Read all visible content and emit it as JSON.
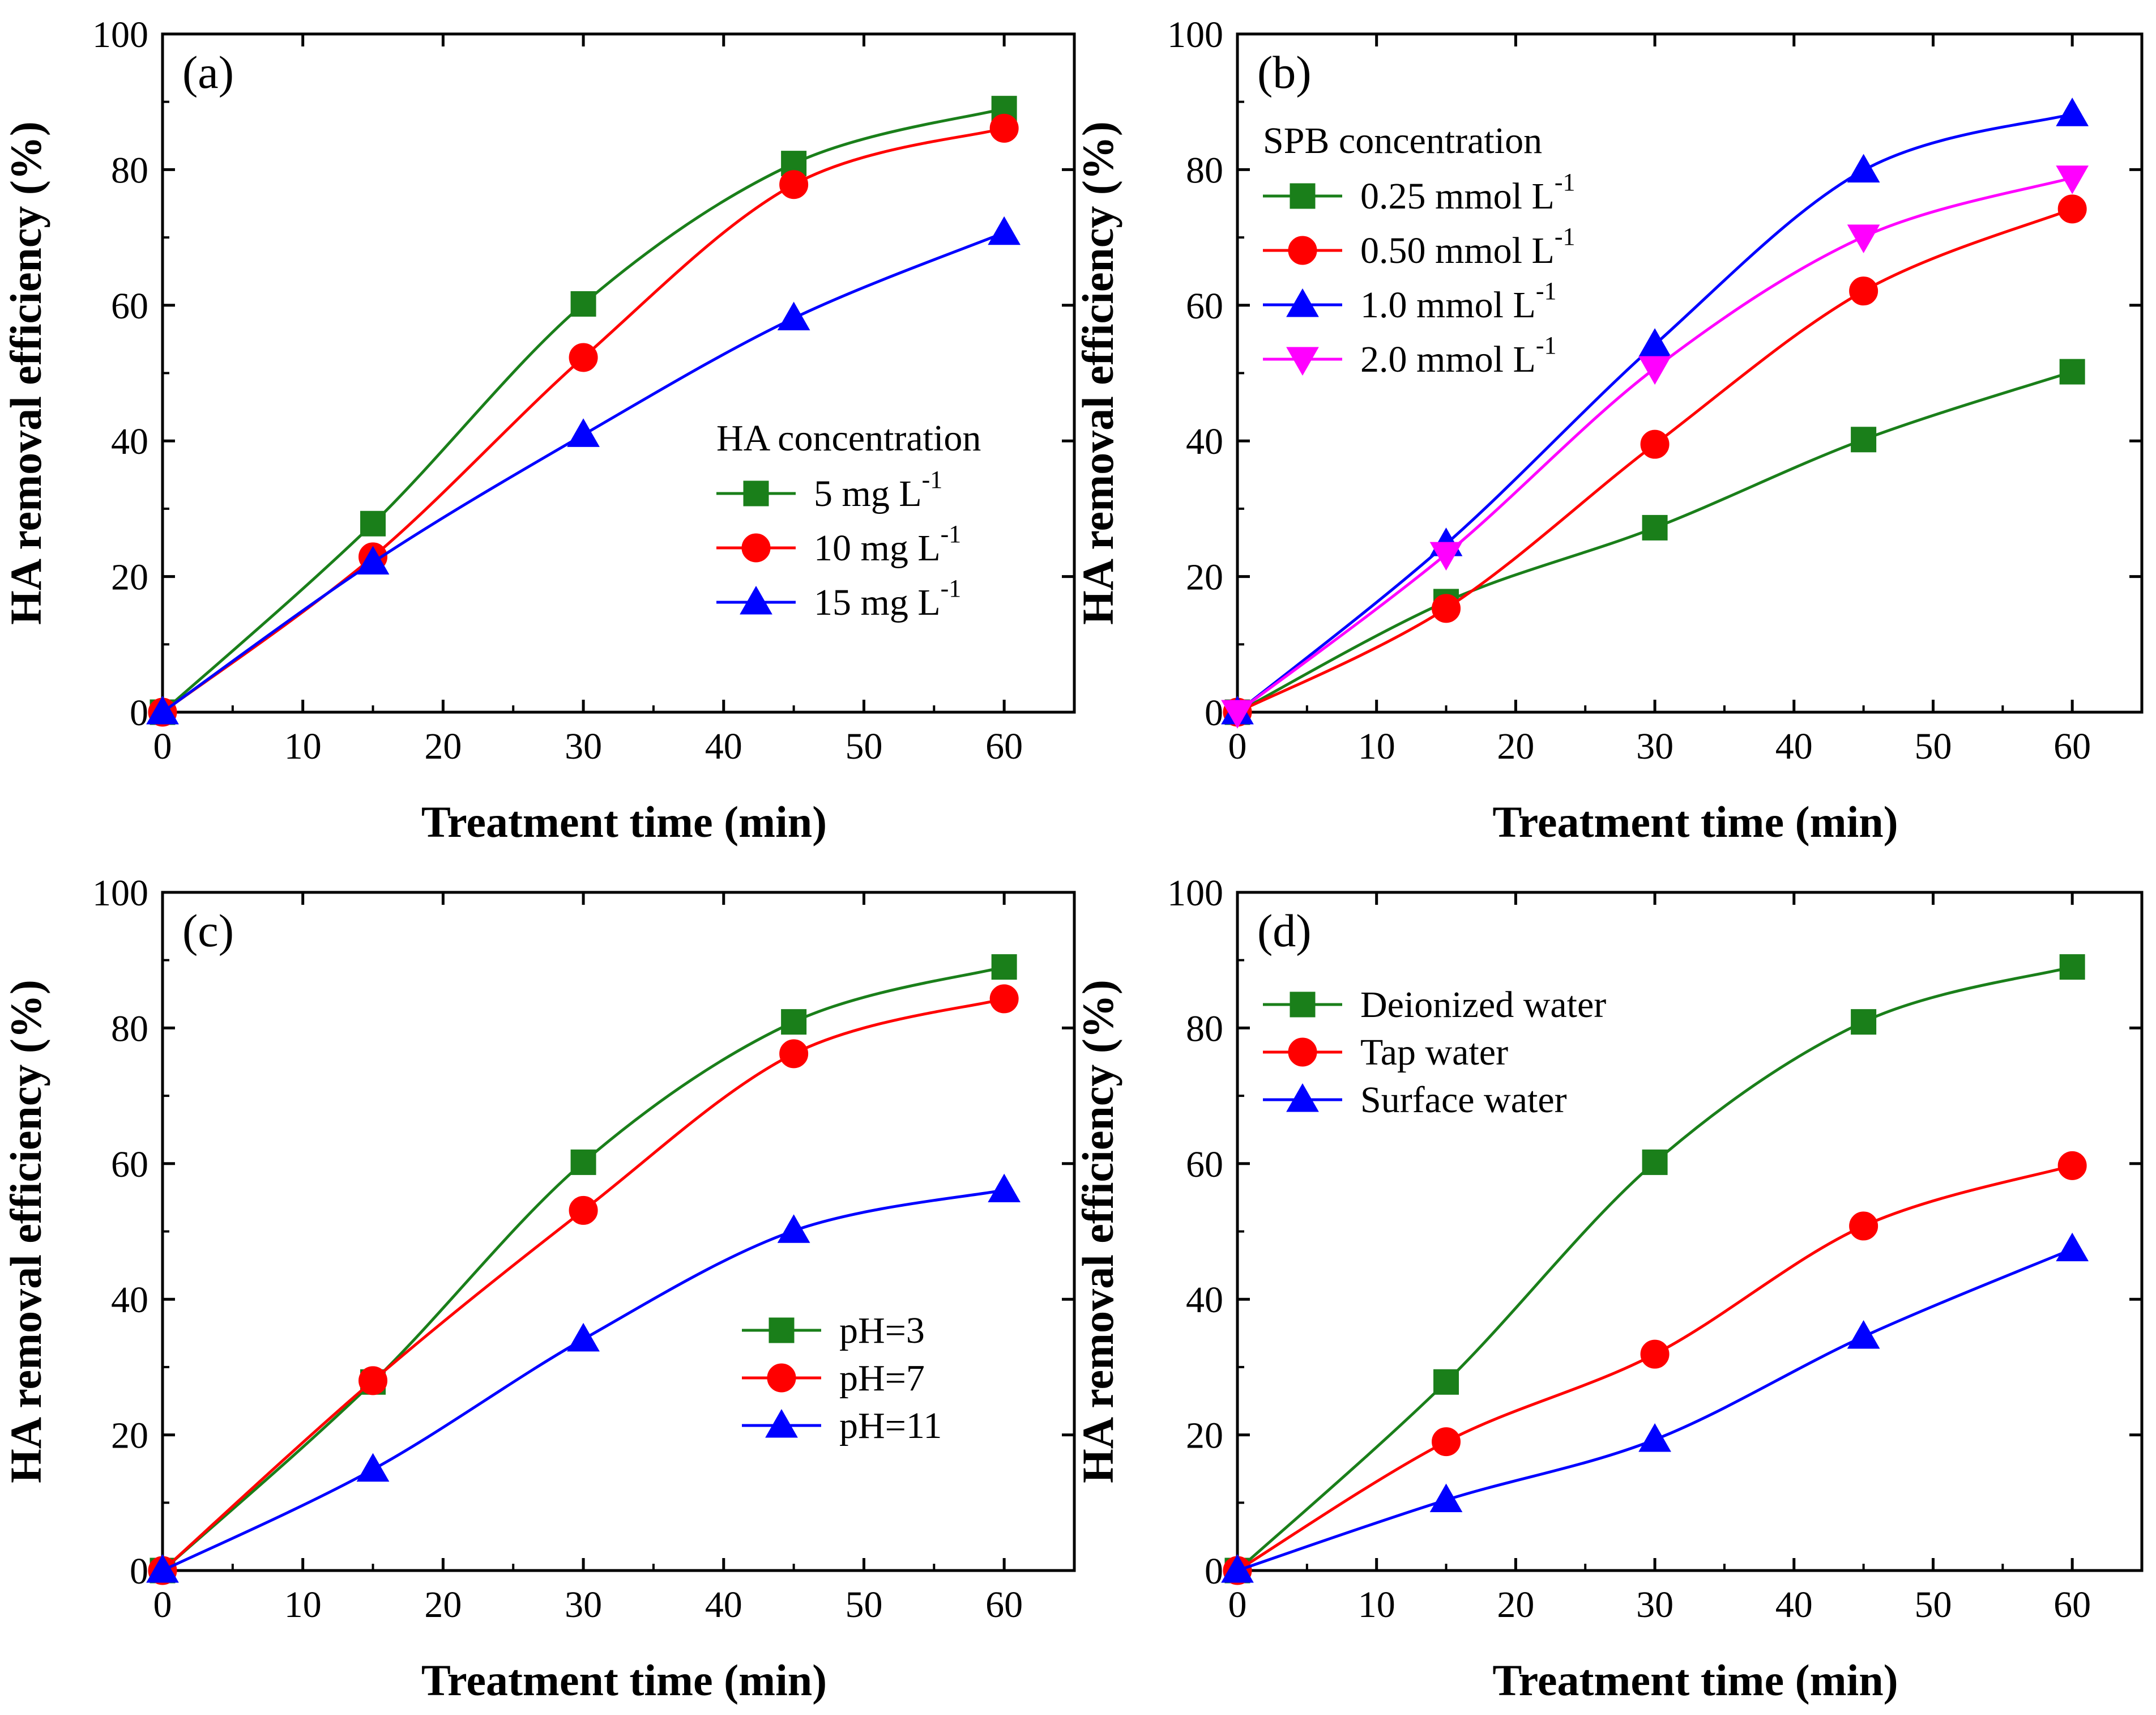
{
  "chart_data": [
    {
      "type": "line",
      "panel_label": "(a)",
      "xlabel": "Treatment time (min)",
      "ylabel": "HA removal efficiency (%)",
      "xlim": [
        0,
        65
      ],
      "ylim": [
        0,
        100
      ],
      "xticks": [
        "0",
        "10",
        "20",
        "30",
        "40",
        "50",
        "60"
      ],
      "yticks": [
        "0",
        "20",
        "40",
        "60",
        "80",
        "100"
      ],
      "x": [
        0,
        15,
        30,
        45,
        60
      ],
      "legend_title": "HA concentration",
      "legend_position": "center-right",
      "series": [
        {
          "label": "5 mg L",
          "sup": "-1",
          "marker": "square",
          "color": "#1a7f1a",
          "values": [
            0,
            27.8,
            60.2,
            80.9,
            89.0
          ]
        },
        {
          "label": "10 mg L",
          "sup": "-1",
          "marker": "circle",
          "color": "#ff0000",
          "values": [
            0,
            22.9,
            52.3,
            77.8,
            86.1
          ]
        },
        {
          "label": "15 mg L",
          "sup": "-1",
          "marker": "triangle-up",
          "color": "#0000ff",
          "values": [
            0,
            22.1,
            40.9,
            58.1,
            70.7
          ]
        }
      ]
    },
    {
      "type": "line",
      "panel_label": "(b)",
      "xlabel": "Treatment time (min)",
      "ylabel": "HA removal efficiency (%)",
      "xlim": [
        0,
        65
      ],
      "ylim": [
        0,
        100
      ],
      "xticks": [
        "0",
        "10",
        "20",
        "30",
        "40",
        "50",
        "60"
      ],
      "yticks": [
        "0",
        "20",
        "40",
        "60",
        "80",
        "100"
      ],
      "x": [
        0,
        15,
        30,
        45,
        60
      ],
      "legend_title": "SPB concentration",
      "legend_position": "upper-left",
      "series": [
        {
          "label": "0.25 mmol L",
          "sup": "-1",
          "marker": "square",
          "color": "#1a7f1a",
          "values": [
            0,
            16.3,
            27.2,
            40.2,
            50.2
          ]
        },
        {
          "label": "0.50 mmol L",
          "sup": "-1",
          "marker": "circle",
          "color": "#ff0000",
          "values": [
            0,
            15.3,
            39.5,
            62.1,
            74.2
          ]
        },
        {
          "label": "1.0 mmol L",
          "sup": "-1",
          "marker": "triangle-up",
          "color": "#0000ff",
          "values": [
            0,
            24.8,
            54.2,
            79.9,
            88.2
          ]
        },
        {
          "label": "2.0 mmol L",
          "sup": "-1",
          "marker": "triangle-down",
          "color": "#ff00ff",
          "values": [
            0,
            23.3,
            50.7,
            70.1,
            78.8
          ]
        }
      ]
    },
    {
      "type": "line",
      "panel_label": "(c)",
      "xlabel": "Treatment time (min)",
      "ylabel": "HA removal efficiency (%)",
      "xlim": [
        0,
        65
      ],
      "ylim": [
        0,
        100
      ],
      "xticks": [
        "0",
        "10",
        "20",
        "30",
        "40",
        "50",
        "60"
      ],
      "yticks": [
        "0",
        "20",
        "40",
        "60",
        "80",
        "100"
      ],
      "x": [
        0,
        15,
        30,
        45,
        60
      ],
      "legend_title": "",
      "legend_position": "center-right",
      "series": [
        {
          "label": "pH=3",
          "sup": "",
          "marker": "square",
          "color": "#1a7f1a",
          "values": [
            0,
            27.8,
            60.2,
            80.9,
            89.0
          ]
        },
        {
          "label": "pH=7",
          "sup": "",
          "marker": "circle",
          "color": "#ff0000",
          "values": [
            0,
            28.0,
            53.1,
            76.2,
            84.3
          ]
        },
        {
          "label": "pH=11",
          "sup": "",
          "marker": "triangle-up",
          "color": "#0000ff",
          "values": [
            0,
            14.9,
            34.1,
            50.1,
            56.1
          ]
        }
      ]
    },
    {
      "type": "line",
      "panel_label": "(d)",
      "xlabel": "Treatment time (min)",
      "ylabel": "HA removal efficiency (%)",
      "xlim": [
        0,
        65
      ],
      "ylim": [
        0,
        100
      ],
      "xticks": [
        "0",
        "10",
        "20",
        "30",
        "40",
        "50",
        "60"
      ],
      "yticks": [
        "0",
        "20",
        "40",
        "60",
        "80",
        "100"
      ],
      "x": [
        0,
        15,
        30,
        45,
        60
      ],
      "legend_title": "",
      "legend_position": "upper-left",
      "series": [
        {
          "label": "Deionized water",
          "sup": "",
          "marker": "square",
          "color": "#1a7f1a",
          "values": [
            0,
            27.8,
            60.2,
            80.9,
            89.0
          ]
        },
        {
          "label": "Tap water",
          "sup": "",
          "marker": "circle",
          "color": "#ff0000",
          "values": [
            0,
            19.0,
            31.9,
            50.8,
            59.7
          ]
        },
        {
          "label": "Surface water",
          "sup": "",
          "marker": "triangle-up",
          "color": "#0000ff",
          "values": [
            0,
            10.4,
            19.3,
            34.5,
            47.4
          ]
        }
      ]
    }
  ]
}
